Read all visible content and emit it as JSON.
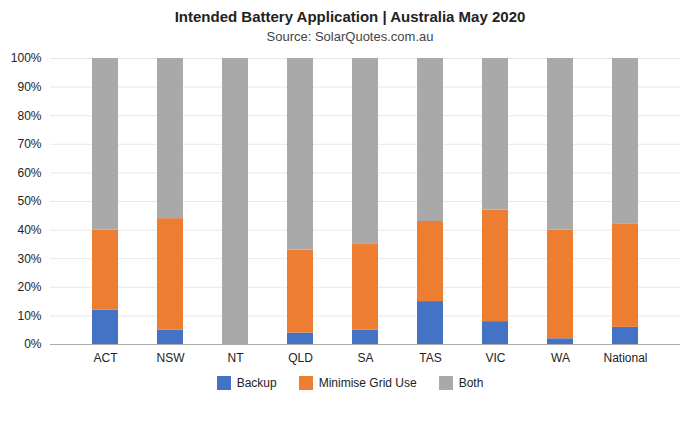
{
  "chart_data": {
    "type": "bar",
    "stacked": true,
    "title": "Intended Battery Application | Australia May 2020",
    "subtitle": "Source: SolarQuotes.com.au",
    "categories": [
      "ACT",
      "NSW",
      "NT",
      "QLD",
      "SA",
      "TAS",
      "VIC",
      "WA",
      "National"
    ],
    "series": [
      {
        "name": "Backup",
        "color": "#4472C4",
        "values": [
          12,
          5,
          0,
          4,
          5,
          15,
          8,
          2,
          6
        ]
      },
      {
        "name": "Minimise Grid Use",
        "color": "#ED7D31",
        "values": [
          28,
          39,
          0,
          29,
          30,
          28,
          39,
          38,
          36
        ]
      },
      {
        "name": "Both",
        "color": "#A9A9A9",
        "values": [
          60,
          56,
          100,
          67,
          65,
          57,
          53,
          60,
          58
        ]
      }
    ],
    "ylim": [
      0,
      100
    ],
    "yticks": [
      {
        "value": 0,
        "label": "0%"
      },
      {
        "value": 10,
        "label": "10%"
      },
      {
        "value": 20,
        "label": "20%"
      },
      {
        "value": 30,
        "label": "30%"
      },
      {
        "value": 40,
        "label": "40%"
      },
      {
        "value": 50,
        "label": "50%"
      },
      {
        "value": 60,
        "label": "60%"
      },
      {
        "value": 70,
        "label": "70%"
      },
      {
        "value": 80,
        "label": "80%"
      },
      {
        "value": 90,
        "label": "90%"
      },
      {
        "value": 100,
        "label": "100%"
      }
    ],
    "grid": true,
    "legend": "bottom"
  }
}
